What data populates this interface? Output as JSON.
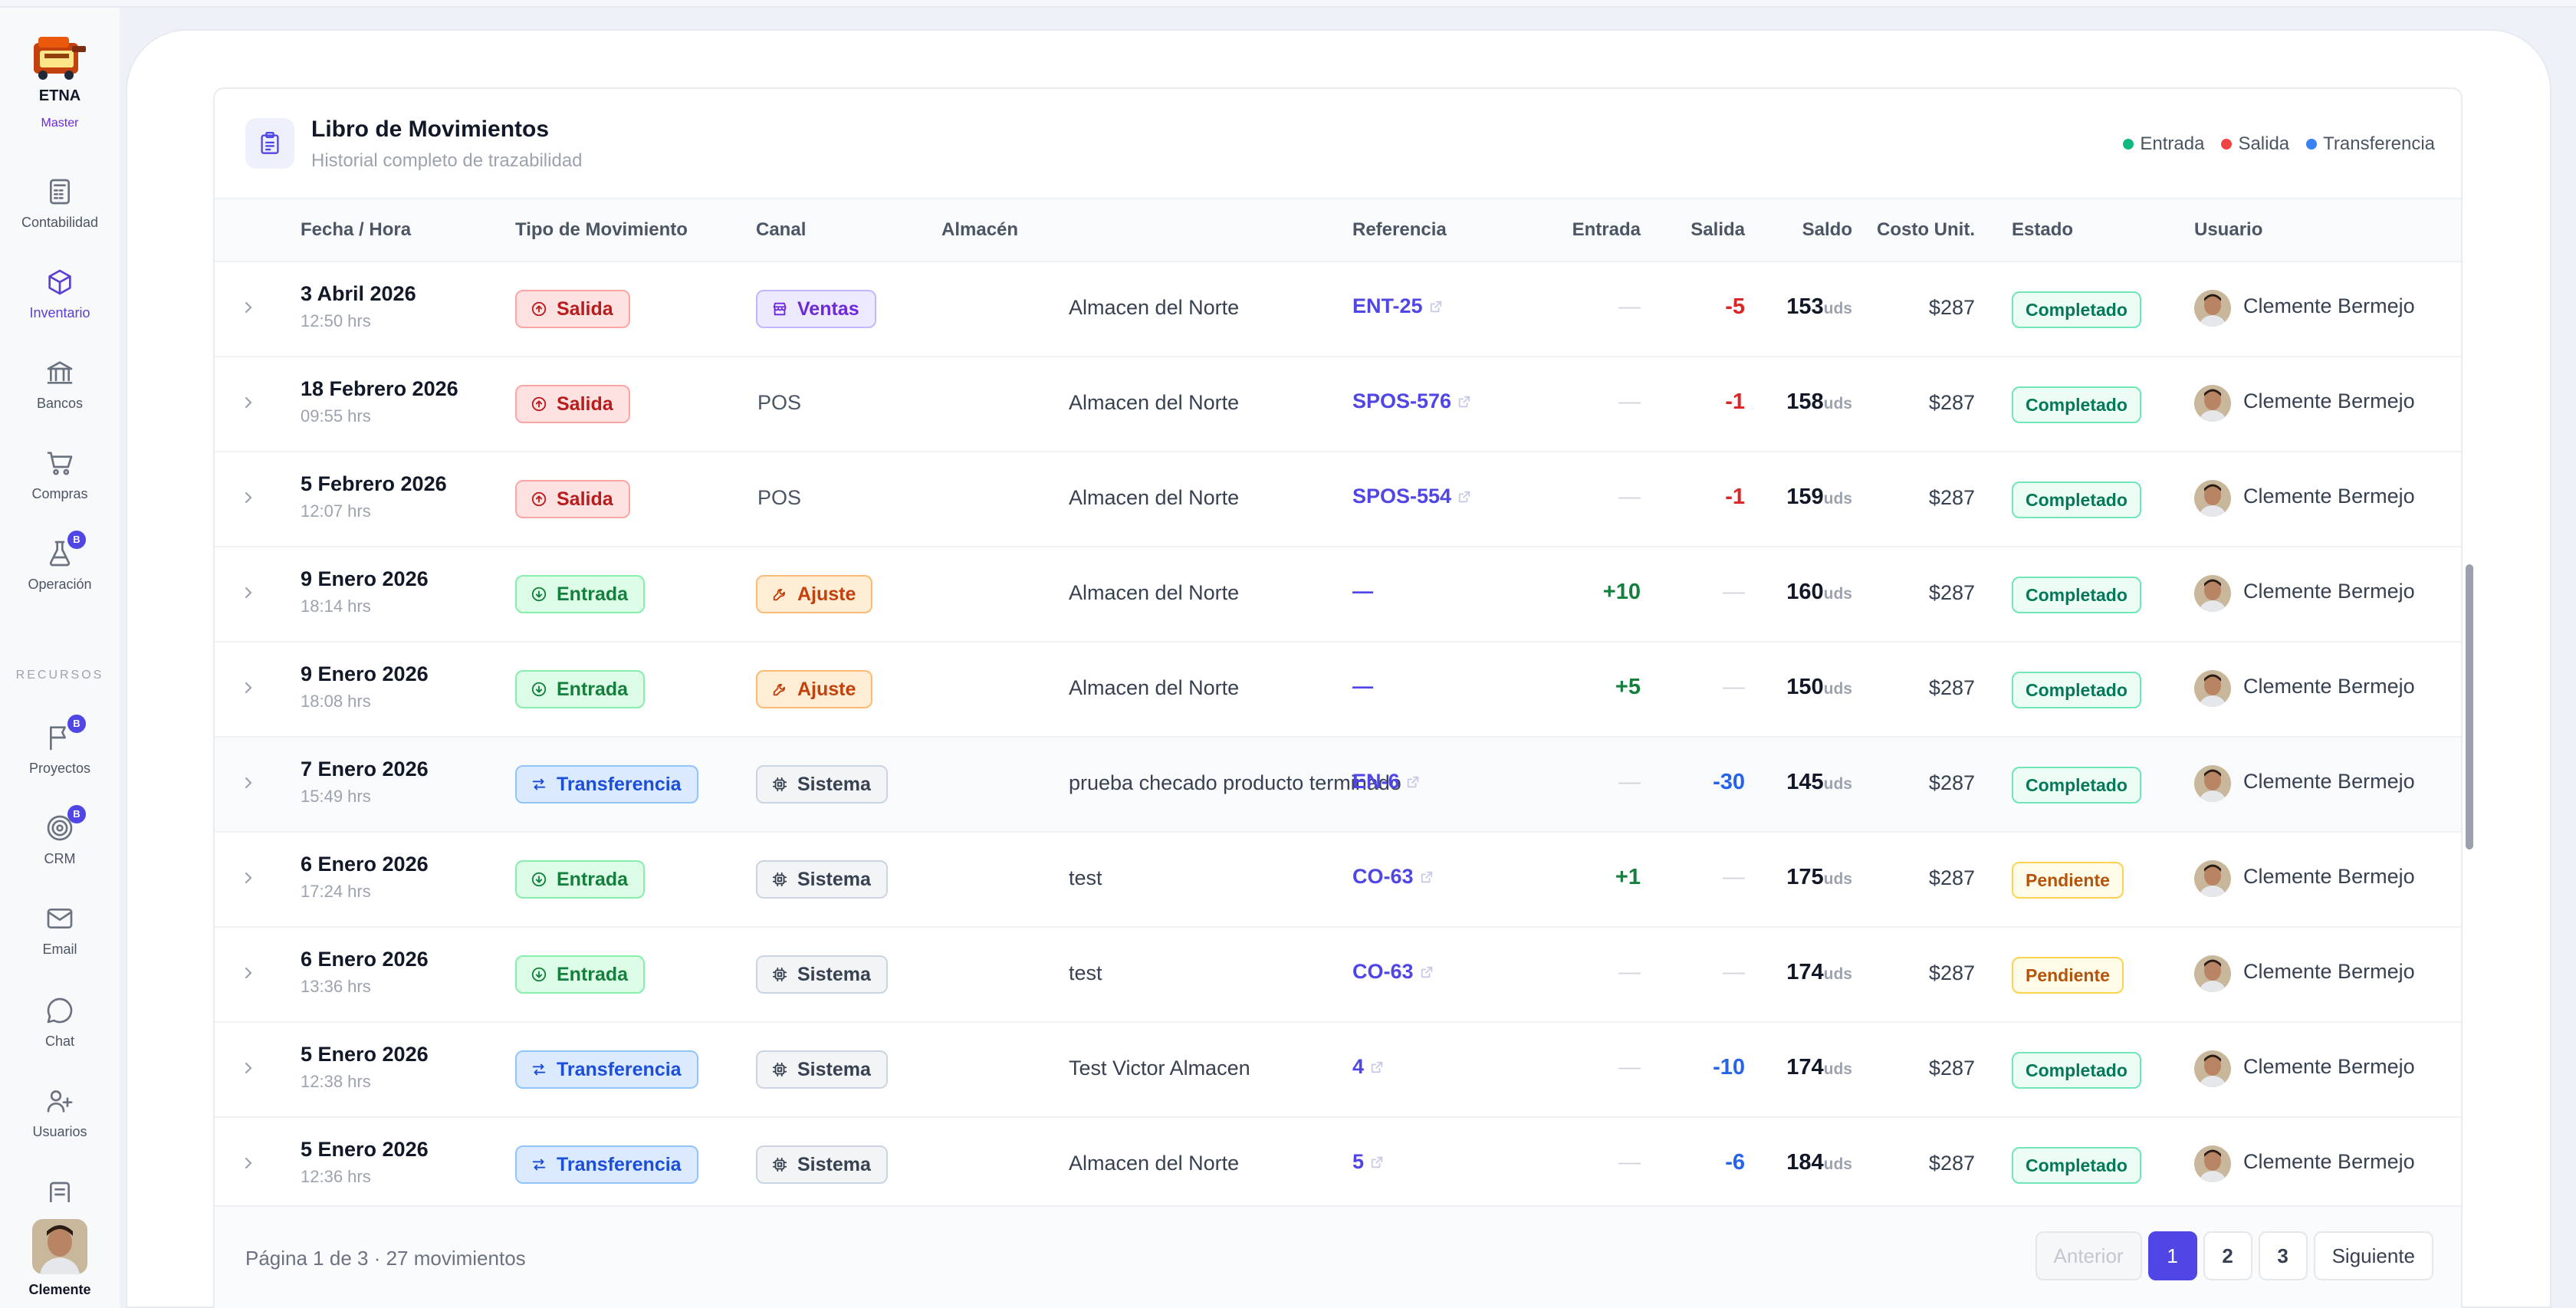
{
  "sidebar": {
    "org_name": "ETNA",
    "org_badge": "Master",
    "items": [
      {
        "label": "Contabilidad",
        "icon": "calculator-icon"
      },
      {
        "label": "Inventario",
        "icon": "cube-icon",
        "active": true
      },
      {
        "label": "Bancos",
        "icon": "bank-icon"
      },
      {
        "label": "Compras",
        "icon": "cart-icon"
      },
      {
        "label": "Operación",
        "icon": "flask-icon",
        "badge": "B"
      }
    ],
    "section_label": "RECURSOS",
    "resources": [
      {
        "label": "Proyectos",
        "icon": "flag-icon",
        "badge": "B"
      },
      {
        "label": "CRM",
        "icon": "target-icon",
        "badge": "B"
      },
      {
        "label": "Email",
        "icon": "mail-icon"
      },
      {
        "label": "Chat",
        "icon": "chat-icon"
      },
      {
        "label": "Usuarios",
        "icon": "users-icon"
      }
    ],
    "user_name": "Clemente"
  },
  "header": {
    "title": "Libro de Movimientos",
    "subtitle": "Historial completo de trazabilidad",
    "legend": [
      {
        "label": "Entrada",
        "color": "#10b981"
      },
      {
        "label": "Salida",
        "color": "#ef4444"
      },
      {
        "label": "Transferencia",
        "color": "#3b82f6"
      }
    ]
  },
  "table": {
    "columns": [
      "Fecha / Hora",
      "Tipo de Movimiento",
      "Canal",
      "Almacén",
      "Referencia",
      "Entrada",
      "Salida",
      "Saldo",
      "Costo Unit.",
      "Estado",
      "Usuario"
    ],
    "unit": "uds",
    "rows": [
      {
        "date": "3 Abril 2026",
        "time": "12:50 hrs",
        "type": "Salida",
        "channel": "Ventas",
        "warehouse": "Almacen del Norte",
        "ref": "ENT-25",
        "ref_link": true,
        "entrada": "—",
        "salida": "-5",
        "saldo": "153",
        "cost": "$287",
        "status": "Completado",
        "user": "Clemente Bermejo"
      },
      {
        "date": "18 Febrero 2026",
        "time": "09:55 hrs",
        "type": "Salida",
        "channel": "POS",
        "warehouse": "Almacen del Norte",
        "ref": "SPOS-576",
        "ref_link": true,
        "entrada": "—",
        "salida": "-1",
        "saldo": "158",
        "cost": "$287",
        "status": "Completado",
        "user": "Clemente Bermejo"
      },
      {
        "date": "5 Febrero 2026",
        "time": "12:07 hrs",
        "type": "Salida",
        "channel": "POS",
        "warehouse": "Almacen del Norte",
        "ref": "SPOS-554",
        "ref_link": true,
        "entrada": "—",
        "salida": "-1",
        "saldo": "159",
        "cost": "$287",
        "status": "Completado",
        "user": "Clemente Bermejo"
      },
      {
        "date": "9 Enero 2026",
        "time": "18:14 hrs",
        "type": "Entrada",
        "channel": "Ajuste",
        "warehouse": "Almacen del Norte",
        "ref": "—",
        "ref_link": false,
        "entrada": "+10",
        "salida": "—",
        "saldo": "160",
        "cost": "$287",
        "status": "Completado",
        "user": "Clemente Bermejo"
      },
      {
        "date": "9 Enero 2026",
        "time": "18:08 hrs",
        "type": "Entrada",
        "channel": "Ajuste",
        "warehouse": "Almacen del Norte",
        "ref": "—",
        "ref_link": false,
        "entrada": "+5",
        "salida": "—",
        "saldo": "150",
        "cost": "$287",
        "status": "Completado",
        "user": "Clemente Bermejo"
      },
      {
        "date": "7 Enero 2026",
        "time": "15:49 hrs",
        "type": "Transferencia",
        "channel": "Sistema",
        "warehouse": "prueba checado producto terminado",
        "ref": "EN-6",
        "ref_link": true,
        "entrada": "—",
        "salida": "-30",
        "saldo": "145",
        "cost": "$287",
        "status": "Completado",
        "user": "Clemente Bermejo"
      },
      {
        "date": "6 Enero 2026",
        "time": "17:24 hrs",
        "type": "Entrada",
        "channel": "Sistema",
        "warehouse": "test",
        "ref": "CO-63",
        "ref_link": true,
        "entrada": "+1",
        "salida": "—",
        "saldo": "175",
        "cost": "$287",
        "status": "Pendiente",
        "user": "Clemente Bermejo"
      },
      {
        "date": "6 Enero 2026",
        "time": "13:36 hrs",
        "type": "Entrada",
        "channel": "Sistema",
        "warehouse": "test",
        "ref": "CO-63",
        "ref_link": true,
        "entrada": "—",
        "salida": "—",
        "saldo": "174",
        "cost": "$287",
        "status": "Pendiente",
        "user": "Clemente Bermejo"
      },
      {
        "date": "5 Enero 2026",
        "time": "12:38 hrs",
        "type": "Transferencia",
        "channel": "Sistema",
        "warehouse": "Test Victor Almacen",
        "ref": "4",
        "ref_link": true,
        "entrada": "—",
        "salida": "-10",
        "saldo": "174",
        "cost": "$287",
        "status": "Completado",
        "user": "Clemente Bermejo"
      },
      {
        "date": "5 Enero 2026",
        "time": "12:36 hrs",
        "type": "Transferencia",
        "channel": "Sistema",
        "warehouse": "Almacen del Norte",
        "ref": "5",
        "ref_link": true,
        "entrada": "—",
        "salida": "-6",
        "saldo": "184",
        "cost": "$287",
        "status": "Completado",
        "user": "Clemente Bermejo"
      }
    ]
  },
  "footer": {
    "info": "Página 1 de 3 · 27 movimientos",
    "prev": "Anterior",
    "pages": [
      "1",
      "2",
      "3"
    ],
    "current_page": "1",
    "next": "Siguiente"
  }
}
